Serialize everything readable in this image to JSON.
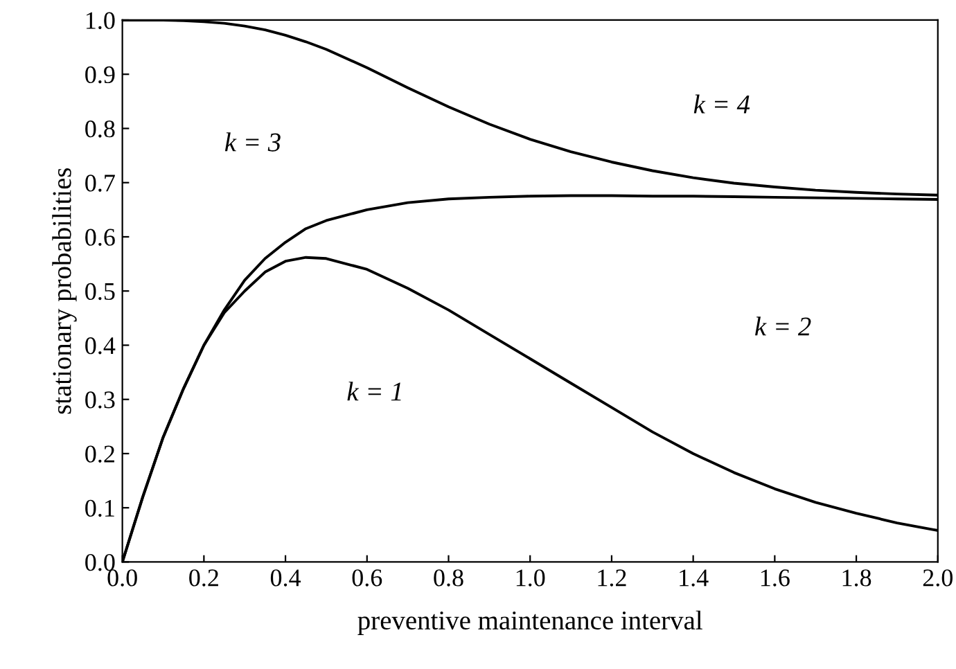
{
  "chart_data": {
    "type": "line",
    "xlabel": "preventive maintenance interval",
    "ylabel": "stationary probabilities",
    "x": [
      0,
      0.05,
      0.1,
      0.15,
      0.2,
      0.25,
      0.3,
      0.35,
      0.4,
      0.45,
      0.5,
      0.6,
      0.7,
      0.8,
      0.9,
      1.0,
      1.1,
      1.2,
      1.3,
      1.4,
      1.5,
      1.6,
      1.7,
      1.8,
      1.9,
      2.0
    ],
    "series": [
      {
        "color": "#000000",
        "values": [
          0,
          0.12,
          0.23,
          0.32,
          0.4,
          0.46,
          0.5,
          0.535,
          0.555,
          0.562,
          0.56,
          0.54,
          0.505,
          0.465,
          0.42,
          0.375,
          0.33,
          0.285,
          0.24,
          0.2,
          0.165,
          0.135,
          0.11,
          0.09,
          0.072,
          0.058
        ]
      },
      {
        "color": "#000000",
        "values": [
          0,
          0.12,
          0.23,
          0.32,
          0.4,
          0.465,
          0.52,
          0.56,
          0.59,
          0.615,
          0.63,
          0.65,
          0.663,
          0.67,
          0.673,
          0.675,
          0.676,
          0.676,
          0.675,
          0.675,
          0.674,
          0.673,
          0.672,
          0.671,
          0.67,
          0.669
        ]
      },
      {
        "color": "#000000",
        "values": [
          1.0,
          1.0,
          1.0,
          0.999,
          0.997,
          0.994,
          0.989,
          0.982,
          0.972,
          0.96,
          0.946,
          0.912,
          0.875,
          0.84,
          0.808,
          0.78,
          0.757,
          0.738,
          0.722,
          0.709,
          0.699,
          0.692,
          0.686,
          0.682,
          0.679,
          0.677
        ]
      }
    ],
    "annotations": [
      "k = 4",
      "k = 3",
      "k = 2",
      "k = 1"
    ],
    "xlim": [
      0,
      2.0
    ],
    "xticks": [
      {
        "value": 0,
        "label": "0.0"
      },
      {
        "value": 0.2,
        "label": "0.2"
      },
      {
        "value": 0.4,
        "label": "0.4"
      },
      {
        "value": 0.6,
        "label": "0.6"
      },
      {
        "value": 0.8,
        "label": "0.8"
      },
      {
        "value": 1.0,
        "label": "1.0"
      },
      {
        "value": 1.2,
        "label": "1.2"
      },
      {
        "value": 1.4,
        "label": "1.4"
      },
      {
        "value": 1.6,
        "label": "1.6"
      },
      {
        "value": 1.8,
        "label": "1.8"
      },
      {
        "value": 2.0,
        "label": "2.0"
      }
    ],
    "ylim": [
      0,
      1.0
    ],
    "yticks": [
      {
        "value": 0,
        "label": "0.0"
      },
      {
        "value": 0.1,
        "label": "0.1"
      },
      {
        "value": 0.2,
        "label": "0.2"
      },
      {
        "value": 0.3,
        "label": "0.3"
      },
      {
        "value": 0.4,
        "label": "0.4"
      },
      {
        "value": 0.5,
        "label": "0.5"
      },
      {
        "value": 0.6,
        "label": "0.6"
      },
      {
        "value": 0.7,
        "label": "0.7"
      },
      {
        "value": 0.8,
        "label": "0.8"
      },
      {
        "value": 0.9,
        "label": "0.9"
      },
      {
        "value": 1.0,
        "label": "1.0"
      }
    ],
    "marker": "none",
    "line_style": "solid"
  }
}
